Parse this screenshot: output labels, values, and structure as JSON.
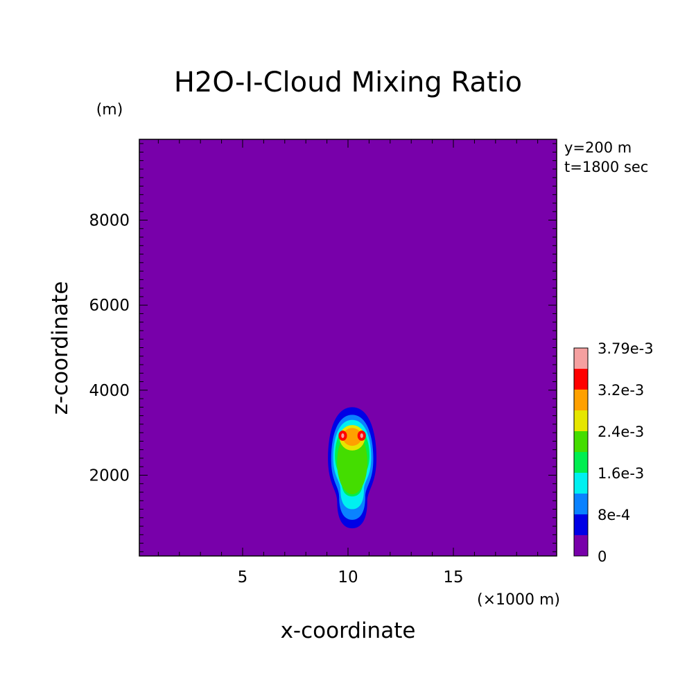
{
  "chart_data": {
    "type": "heatmap",
    "title": "H2O-I-Cloud Mixing Ratio",
    "xlabel": "x-coordinate",
    "ylabel": "z-coordinate",
    "x_unit": "(×1000 m)",
    "y_unit": "(m)",
    "info_lines": [
      "y=200 m",
      "t=1800 sec"
    ],
    "xlim": [
      0.1,
      19.9
    ],
    "ylim": [
      100,
      9900
    ],
    "x_ticks": [
      5,
      10,
      15
    ],
    "y_ticks": [
      2000,
      4000,
      6000,
      8000
    ],
    "x_ticks_minor_step": 1,
    "y_ticks_minor_step": 200,
    "background_color": "#7800aa",
    "colorbar": {
      "levels": [
        0,
        0.0004,
        0.0008,
        0.0012,
        0.0016,
        0.002,
        0.0024,
        0.0028,
        0.0032,
        0.0036,
        0.00379
      ],
      "colors": [
        "#7800aa",
        "#0000e6",
        "#0a82ff",
        "#00f0f0",
        "#00ee50",
        "#44dd00",
        "#e6e600",
        "#ffa000",
        "#ff0000",
        "#f5a0a0"
      ],
      "tick_labels": [
        "0",
        "8e-4",
        "1.6e-3",
        "2.4e-3",
        "3.2e-3",
        "3.79e-3"
      ],
      "tick_values": [
        0,
        0.0008,
        0.0016,
        0.0024,
        0.0032,
        0.00379
      ]
    },
    "contours": [
      {
        "level_index": 1,
        "shape": "plume",
        "cx": 10.2,
        "x_half_width": 1.15,
        "z_bottom": 750,
        "z_top": 3600
      },
      {
        "level_index": 2,
        "shape": "plume",
        "cx": 10.2,
        "x_half_width": 1.0,
        "z_bottom": 950,
        "z_top": 3420
      },
      {
        "level_index": 3,
        "shape": "plume",
        "cx": 10.2,
        "x_half_width": 0.9,
        "z_bottom": 1200,
        "z_top": 3300
      },
      {
        "level_index": 4,
        "shape": "plume",
        "cx": 10.2,
        "x_half_width": 0.82,
        "z_bottom": 1500,
        "z_top": 3150
      },
      {
        "level_index": 5,
        "shape": "ellipse",
        "cx": 10.2,
        "cz": 2300,
        "rx": 0.72,
        "rz": 750
      },
      {
        "level_index": 6,
        "shape": "ellipse",
        "cx": 10.2,
        "cz": 2880,
        "rx": 0.6,
        "rz": 300
      },
      {
        "level_index": 7,
        "shape": "ellipse",
        "cx": 10.2,
        "cz": 2900,
        "rx": 0.45,
        "rz": 210
      },
      {
        "level_index": 8,
        "shape": "ellipse",
        "cx": 9.75,
        "cz": 2930,
        "rx": 0.2,
        "rz": 120
      },
      {
        "level_index": 8,
        "shape": "ellipse",
        "cx": 10.65,
        "cz": 2930,
        "rx": 0.2,
        "rz": 120
      },
      {
        "level_index": 9,
        "shape": "ellipse",
        "cx": 9.75,
        "cz": 2930,
        "rx": 0.07,
        "rz": 55
      },
      {
        "level_index": 9,
        "shape": "ellipse",
        "cx": 10.65,
        "cz": 2930,
        "rx": 0.07,
        "rz": 55
      }
    ]
  }
}
